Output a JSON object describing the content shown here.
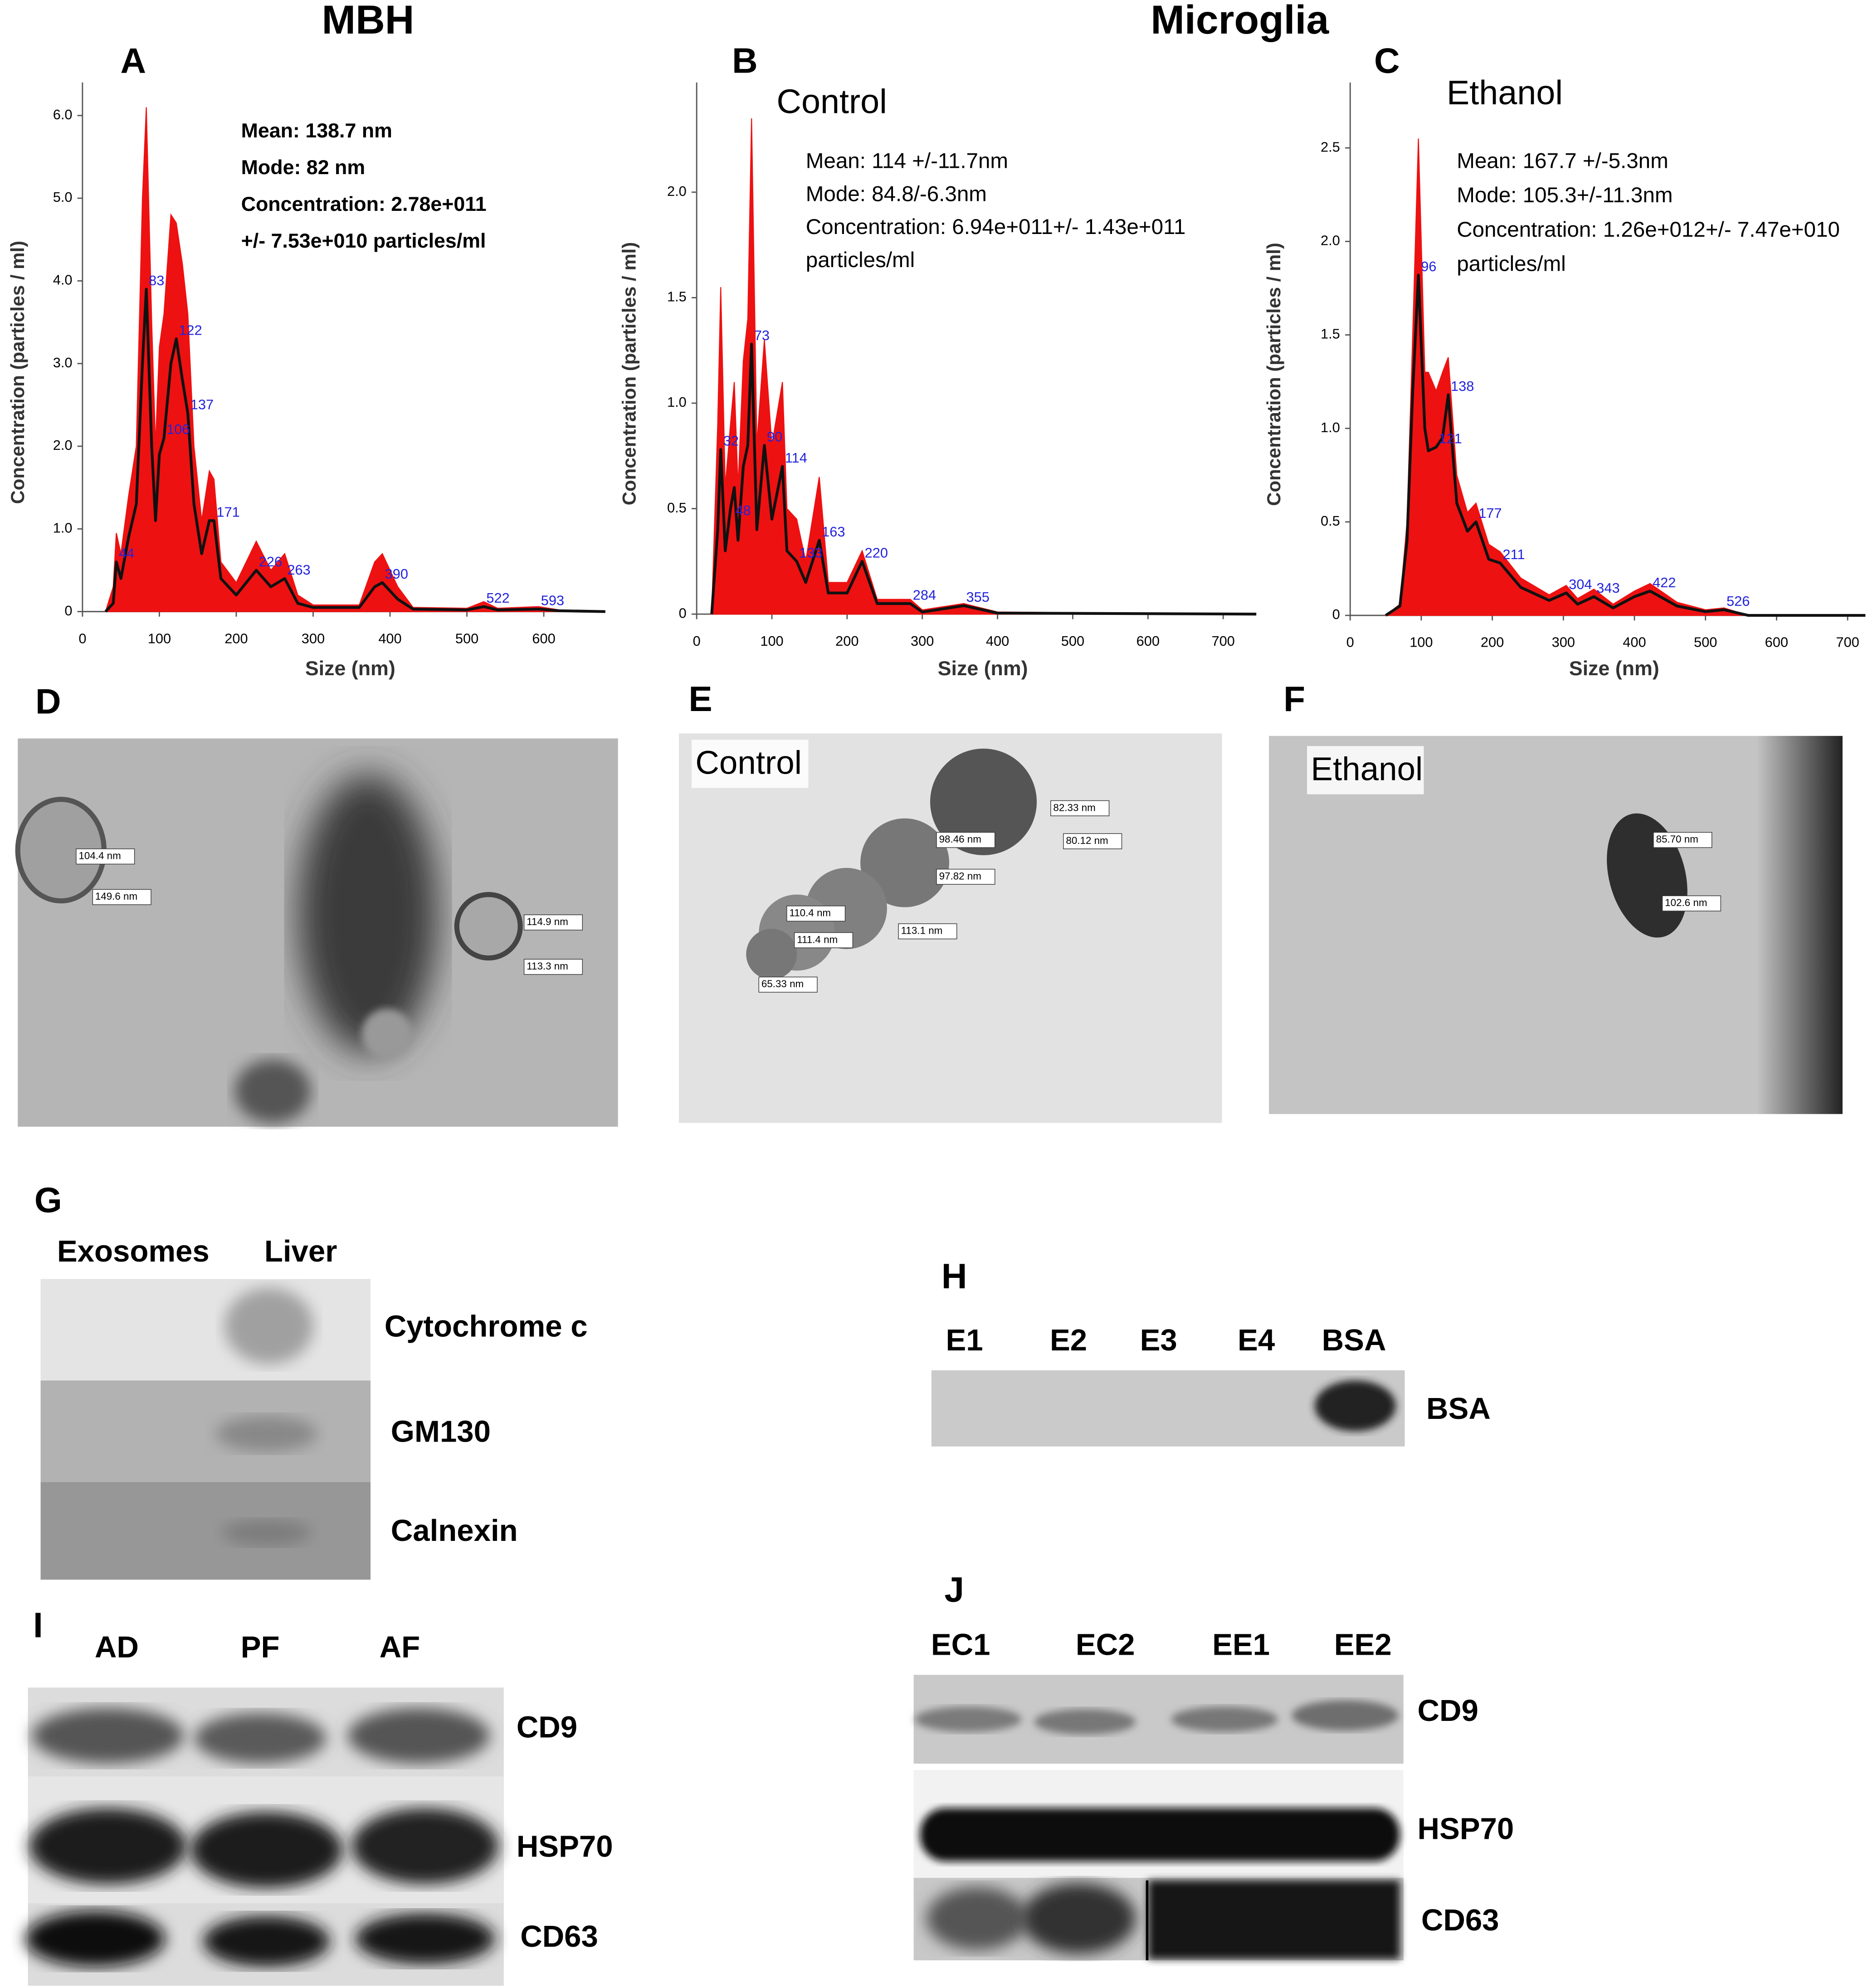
{
  "headers": [
    "MBH",
    "Microglia"
  ],
  "chart_data": [
    {
      "type": "line",
      "label": "A",
      "xlabel": "Size (nm)",
      "ylabel": "Concentration (particles / ml)",
      "annotations": [
        "Mean: 138.7 nm",
        "Mode: 82 nm",
        "Concentration: 2.78e+011",
        "+/- 7.53e+010 particles/ml"
      ],
      "x": [
        30,
        40,
        44,
        50,
        60,
        70,
        78,
        83,
        90,
        95,
        100,
        106,
        115,
        122,
        130,
        137,
        145,
        155,
        165,
        171,
        180,
        200,
        226,
        245,
        263,
        280,
        300,
        360,
        380,
        390,
        410,
        430,
        500,
        522,
        540,
        593,
        620,
        680
      ],
      "series": [
        {
          "color": "#ee1111",
          "area": true,
          "values": [
            0,
            0.3,
            0.95,
            0.7,
            1.4,
            2.0,
            5.0,
            6.1,
            3.5,
            2.0,
            3.2,
            3.6,
            4.8,
            4.7,
            4.2,
            3.6,
            2.0,
            1.1,
            1.7,
            1.6,
            0.6,
            0.35,
            0.85,
            0.5,
            0.7,
            0.2,
            0.08,
            0.08,
            0.6,
            0.7,
            0.3,
            0.05,
            0.04,
            0.12,
            0.04,
            0.06,
            0.02,
            0
          ]
        },
        {
          "color": "#111111",
          "area": false,
          "values": [
            0,
            0.1,
            0.6,
            0.4,
            0.9,
            1.3,
            3.0,
            3.9,
            2.0,
            1.1,
            1.9,
            2.1,
            3.0,
            3.3,
            2.8,
            2.4,
            1.3,
            0.7,
            1.1,
            1.1,
            0.4,
            0.2,
            0.5,
            0.3,
            0.4,
            0.1,
            0.05,
            0.05,
            0.3,
            0.35,
            0.15,
            0.03,
            0.02,
            0.06,
            0.02,
            0.03,
            0.01,
            0
          ]
        }
      ],
      "peaks": {
        "color": "#2222dd",
        "x": [
          44,
          83,
          122,
          137,
          106,
          171,
          226,
          263,
          390,
          522,
          593
        ],
        "y": [
          0.6,
          3.9,
          3.3,
          2.4,
          2.1,
          1.1,
          0.5,
          0.4,
          0.35,
          0.06,
          0.03
        ]
      },
      "xlim": [
        0,
        680
      ],
      "ylim": [
        0,
        6.4
      ],
      "xticks": [
        0,
        100,
        200,
        300,
        400,
        500,
        600
      ],
      "yticks": [
        0,
        {
          "value": 1,
          "label": "1.0"
        },
        {
          "value": 2,
          "label": "2.0"
        },
        {
          "value": 3,
          "label": "3.0"
        },
        {
          "value": 4,
          "label": "4.0"
        },
        {
          "value": 5,
          "label": "5.0"
        },
        {
          "value": 6,
          "label": "6.0"
        }
      ]
    },
    {
      "type": "line",
      "label": "B",
      "title": "Control",
      "xlabel": "Size (nm)",
      "ylabel": "Concentration (particles / ml)",
      "annotations": [
        "Mean: 114 +/-11.7nm",
        "Mode: 84.8/-6.3nm",
        "Concentration: 6.94e+011+/- 1.43e+011",
        "particles/ml"
      ],
      "x": [
        20,
        28,
        32,
        38,
        45,
        50,
        55,
        62,
        68,
        73,
        80,
        90,
        100,
        114,
        120,
        133,
        145,
        163,
        175,
        200,
        220,
        240,
        284,
        300,
        355,
        400,
        744
      ],
      "series": [
        {
          "color": "#ee1111",
          "area": true,
          "values": [
            0,
            0.9,
            1.55,
            0.6,
            0.9,
            1.1,
            0.6,
            1.2,
            1.4,
            2.35,
            0.8,
            1.3,
            0.8,
            1.1,
            0.5,
            0.45,
            0.25,
            0.65,
            0.15,
            0.15,
            0.3,
            0.07,
            0.07,
            0.02,
            0.05,
            0.01,
            0
          ]
        },
        {
          "color": "#111111",
          "area": false,
          "values": [
            0,
            0.4,
            0.78,
            0.3,
            0.5,
            0.6,
            0.35,
            0.7,
            0.8,
            1.28,
            0.4,
            0.8,
            0.45,
            0.7,
            0.3,
            0.25,
            0.15,
            0.35,
            0.1,
            0.1,
            0.25,
            0.05,
            0.05,
            0.01,
            0.04,
            0.005,
            0
          ]
        }
      ],
      "peaks": {
        "color": "#2222dd",
        "x": [
          32,
          48,
          73,
          90,
          114,
          133,
          163,
          220,
          284,
          355
        ],
        "y": [
          0.78,
          0.45,
          1.28,
          0.8,
          0.7,
          0.25,
          0.35,
          0.25,
          0.05,
          0.04
        ]
      },
      "xlim": [
        0,
        744
      ],
      "ylim": [
        0,
        2.52
      ],
      "xticks": [
        0,
        100,
        200,
        300,
        400,
        500,
        600,
        700
      ],
      "yticks": [
        0,
        0.5,
        {
          "value": 1,
          "label": "1.0"
        },
        1.5,
        {
          "value": 2,
          "label": "2.0"
        }
      ]
    },
    {
      "type": "line",
      "label": "C",
      "title": "Ethanol",
      "xlabel": "Size (nm)",
      "ylabel": "Concentration (particles / ml)",
      "annotations": [
        "Mean: 167.7 +/-5.3nm",
        "Mode: 105.3+/-11.3nm",
        "Concentration: 1.26e+012+/- 7.47e+010",
        "particles/ml"
      ],
      "x": [
        50,
        70,
        80,
        88,
        96,
        105,
        110,
        121,
        130,
        138,
        150,
        165,
        177,
        195,
        211,
        240,
        280,
        304,
        320,
        343,
        370,
        400,
        422,
        460,
        500,
        526,
        560,
        725
      ],
      "series": [
        {
          "color": "#ee1111",
          "area": true,
          "values": [
            0,
            0.06,
            0.5,
            1.5,
            2.55,
            1.3,
            1.3,
            1.2,
            1.3,
            1.38,
            0.75,
            0.55,
            0.6,
            0.38,
            0.34,
            0.2,
            0.11,
            0.16,
            0.09,
            0.14,
            0.06,
            0.13,
            0.17,
            0.07,
            0.03,
            0.04,
            0,
            0
          ]
        },
        {
          "color": "#111111",
          "area": false,
          "values": [
            0,
            0.05,
            0.4,
            1.2,
            1.82,
            1.0,
            0.88,
            0.9,
            0.95,
            1.18,
            0.6,
            0.45,
            0.5,
            0.3,
            0.28,
            0.15,
            0.08,
            0.12,
            0.06,
            0.1,
            0.04,
            0.1,
            0.13,
            0.05,
            0.02,
            0.03,
            0,
            0
          ]
        }
      ],
      "peaks": {
        "color": "#2222dd",
        "x": [
          96,
          138,
          121,
          177,
          211,
          304,
          343,
          422,
          526
        ],
        "y": [
          1.82,
          1.18,
          0.9,
          0.5,
          0.28,
          0.12,
          0.1,
          0.13,
          0.03
        ]
      },
      "xlim": [
        0,
        725
      ],
      "ylim": [
        0,
        2.85
      ],
      "xticks": [
        0,
        100,
        200,
        300,
        400,
        500,
        600,
        700
      ],
      "yticks": [
        0,
        0.5,
        {
          "value": 1,
          "label": "1.0"
        },
        1.5,
        {
          "value": 2,
          "label": "2.0"
        },
        2.5
      ]
    }
  ],
  "micrographs": [
    {
      "label": "D",
      "measurements": [
        "104.4 nm",
        "149.6 nm",
        "114.9 nm",
        "113.3 nm"
      ]
    },
    {
      "label": "E",
      "title": "Control",
      "measurements": [
        "82.33 nm",
        "80.12 nm",
        "98.46 nm",
        "97.82 nm",
        "110.4 nm",
        "113.1 nm",
        "111.4 nm",
        "65.33 nm"
      ]
    },
    {
      "label": "F",
      "title": "Ethanol",
      "measurements": [
        "85.70 nm",
        "102.6 nm"
      ]
    }
  ],
  "blots": [
    {
      "label": "G",
      "lanes": [
        "Exosomes",
        "Liver"
      ],
      "bands": [
        "Cytochrome c",
        "GM130",
        "Calnexin"
      ]
    },
    {
      "label": "H",
      "lanes": [
        "E1",
        "E2",
        "E3",
        "E4",
        "BSA"
      ],
      "bands": [
        "BSA"
      ]
    },
    {
      "label": "I",
      "lanes": [
        "AD",
        "PF",
        "AF"
      ],
      "bands": [
        "CD9",
        "HSP70",
        "CD63"
      ]
    },
    {
      "label": "J",
      "lanes": [
        "EC1",
        "EC2",
        "EE1",
        "EE2"
      ],
      "bands": [
        "CD9",
        "HSP70",
        "CD63"
      ]
    }
  ]
}
